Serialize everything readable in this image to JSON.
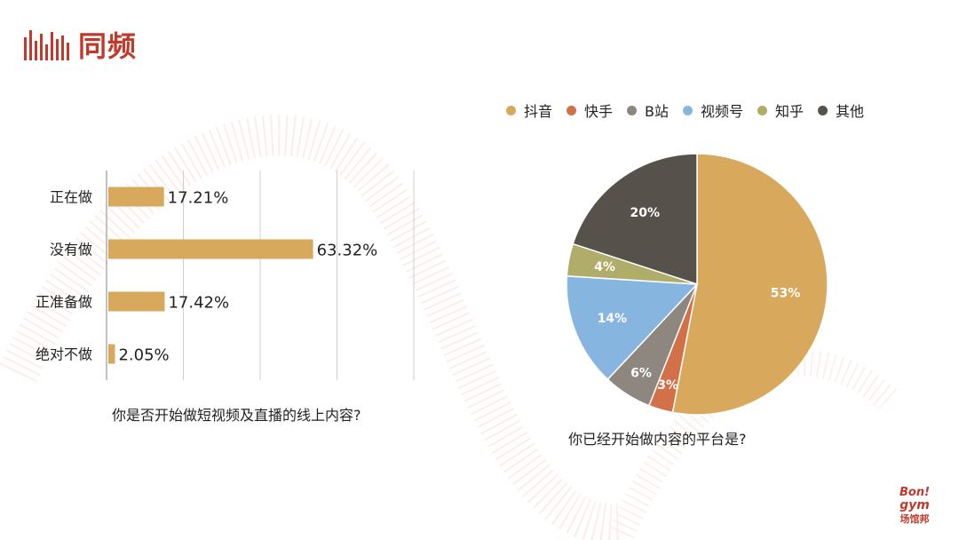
{
  "logo": {
    "text": "同频"
  },
  "brand": {
    "line1": "Bon!",
    "line2": "gym",
    "line3": "场馆邦"
  },
  "colors": {
    "accent": "#c0392b",
    "bar": "#d8a95c"
  },
  "chart_data": [
    {
      "type": "bar",
      "orientation": "horizontal",
      "categories": [
        "正在做",
        "没有做",
        "正准备做",
        "绝对不做"
      ],
      "values": [
        17.21,
        63.32,
        17.42,
        2.05
      ],
      "labels": [
        "17.21%",
        "63.32%",
        "17.42%",
        "2.05%"
      ],
      "xlim": [
        0,
        95
      ],
      "grid": true,
      "color": "#d8a95c",
      "caption": "你是否开始做短视频及直播的线上内容?"
    },
    {
      "type": "pie",
      "categories": [
        "抖音",
        "快手",
        "B站",
        "视频号",
        "知乎",
        "其他"
      ],
      "values": [
        53,
        3,
        6,
        14,
        4,
        20
      ],
      "labels": [
        "53%",
        "3%",
        "6%",
        "14%",
        "4%",
        "20%"
      ],
      "colors": [
        "#d8a95c",
        "#d2704a",
        "#8e8780",
        "#86b6e0",
        "#b0ac6a",
        "#56524b"
      ],
      "legend_position": "top",
      "caption": "你已经开始做内容的平台是?"
    }
  ]
}
